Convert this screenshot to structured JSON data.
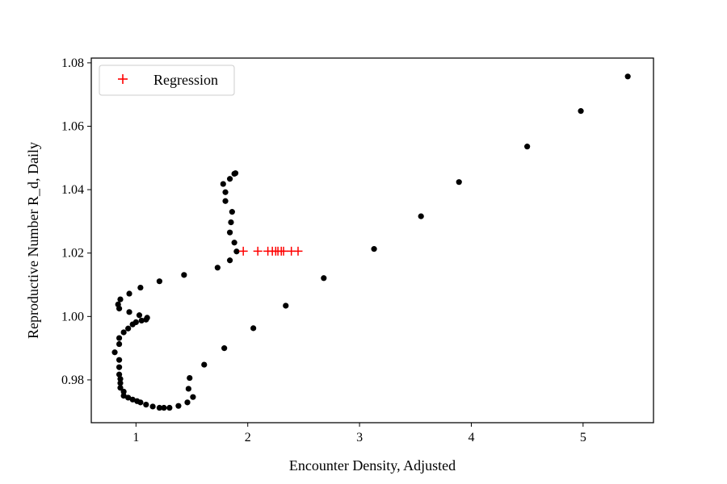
{
  "chart_data": {
    "type": "scatter",
    "xlabel": "Encounter Density, Adjusted",
    "ylabel": "Reproductive Number R_d, Daily",
    "xlim": [
      0.6,
      5.63
    ],
    "ylim": [
      0.9665,
      1.0815
    ],
    "x_ticks": [
      1,
      2,
      3,
      4,
      5
    ],
    "x_tick_labels": [
      "1",
      "2",
      "3",
      "4",
      "5"
    ],
    "y_ticks": [
      0.98,
      1.0,
      1.02,
      1.04,
      1.06,
      1.08
    ],
    "y_tick_labels": [
      "0.98",
      "1.00",
      "1.02",
      "1.04",
      "1.06",
      "1.08"
    ],
    "grid": false,
    "legend_position": "top-left",
    "series": [
      {
        "marker": "dot",
        "color": "#000000",
        "points": [
          [
            5.4,
            1.0757
          ],
          [
            4.98,
            1.0648
          ],
          [
            4.5,
            1.0536
          ],
          [
            3.89,
            1.0424
          ],
          [
            3.55,
            1.0316
          ],
          [
            3.13,
            1.0213
          ],
          [
            2.68,
            1.0121
          ],
          [
            2.34,
            1.0034
          ],
          [
            2.05,
            0.9963
          ],
          [
            1.79,
            0.99
          ],
          [
            1.61,
            0.9848
          ],
          [
            1.48,
            0.9806
          ],
          [
            1.47,
            0.9772
          ],
          [
            1.51,
            0.9746
          ],
          [
            1.46,
            0.9729
          ],
          [
            1.38,
            0.9718
          ],
          [
            1.3,
            0.9712
          ],
          [
            1.25,
            0.9712
          ],
          [
            1.21,
            0.9712
          ],
          [
            1.15,
            0.9716
          ],
          [
            1.09,
            0.9722
          ],
          [
            1.04,
            0.9729
          ],
          [
            1.01,
            0.9733
          ],
          [
            0.97,
            0.9738
          ],
          [
            0.93,
            0.9744
          ],
          [
            0.89,
            0.975
          ],
          [
            0.89,
            0.9763
          ],
          [
            0.86,
            0.9775
          ],
          [
            0.86,
            0.979
          ],
          [
            0.86,
            0.9803
          ],
          [
            0.85,
            0.9817
          ],
          [
            0.85,
            0.984
          ],
          [
            0.85,
            0.9863
          ],
          [
            0.81,
            0.9887
          ],
          [
            0.85,
            0.9913
          ],
          [
            0.85,
            0.9932
          ],
          [
            0.89,
            0.995
          ],
          [
            0.93,
            0.9962
          ],
          [
            0.97,
            0.9975
          ],
          [
            1.0,
            0.9982
          ],
          [
            1.05,
            0.9987
          ],
          [
            1.09,
            0.999
          ],
          [
            1.1,
            0.9996
          ],
          [
            1.03,
            1.0004
          ],
          [
            0.94,
            1.0014
          ],
          [
            0.85,
            1.0025
          ],
          [
            0.84,
            1.0038
          ],
          [
            0.86,
            1.0054
          ],
          [
            0.94,
            1.0072
          ],
          [
            1.04,
            1.0091
          ],
          [
            1.21,
            1.0111
          ],
          [
            1.43,
            1.0131
          ],
          [
            1.73,
            1.0154
          ],
          [
            1.84,
            1.0177
          ],
          [
            1.9,
            1.0205
          ],
          [
            1.88,
            1.0233
          ],
          [
            1.84,
            1.0265
          ],
          [
            1.85,
            1.0297
          ],
          [
            1.86,
            1.033
          ],
          [
            1.8,
            1.0364
          ],
          [
            1.8,
            1.0392
          ],
          [
            1.78,
            1.0418
          ],
          [
            1.84,
            1.0434
          ],
          [
            1.88,
            1.045
          ],
          [
            1.89,
            1.0452
          ]
        ]
      },
      {
        "name": "Regression",
        "marker": "plus",
        "color": "#ff0000",
        "points": [
          [
            1.96,
            1.0206
          ],
          [
            2.09,
            1.0206
          ],
          [
            2.18,
            1.0206
          ],
          [
            2.22,
            1.0206
          ],
          [
            2.25,
            1.0206
          ],
          [
            2.27,
            1.0206
          ],
          [
            2.3,
            1.0206
          ],
          [
            2.32,
            1.0206
          ],
          [
            2.39,
            1.0206
          ],
          [
            2.45,
            1.0206
          ]
        ]
      }
    ]
  }
}
